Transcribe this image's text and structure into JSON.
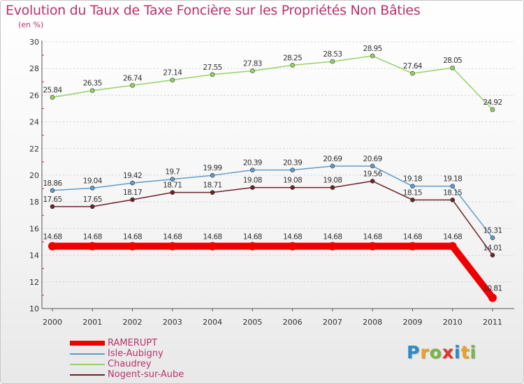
{
  "chart_data": {
    "type": "line",
    "title": "Evolution du Taux de Taxe Foncière sur les Propriétés Non Bâties",
    "subtitle": "(en %)",
    "x": [
      "2000",
      "2001",
      "2002",
      "2003",
      "2004",
      "2005",
      "2006",
      "2007",
      "2008",
      "2009",
      "2010",
      "2011"
    ],
    "ylim": [
      10,
      30
    ],
    "yticks": [
      "10",
      "12",
      "14",
      "16",
      "18",
      "20",
      "22",
      "24",
      "26",
      "28",
      "30"
    ],
    "series": [
      {
        "name": "RAMERUPT",
        "color": "#ee0000",
        "values": [
          14.68,
          14.68,
          14.68,
          14.68,
          14.68,
          14.68,
          14.68,
          14.68,
          14.68,
          14.68,
          14.68,
          10.81
        ],
        "labels": [
          "14.68",
          "14.68",
          "14.68",
          "14.68",
          "14.68",
          "14.68",
          "14.68",
          "14.68",
          "14.68",
          "14.68",
          "14.68",
          "10.81"
        ]
      },
      {
        "name": "Isle-Aubigny",
        "color": "#5f9bcb",
        "values": [
          18.86,
          19.04,
          19.42,
          19.7,
          19.99,
          20.39,
          20.39,
          20.69,
          20.69,
          19.18,
          19.18,
          15.31
        ],
        "labels": [
          "18.86",
          "19.04",
          "19.42",
          "19.7",
          "19.99",
          "20.39",
          "20.39",
          "20.69",
          "20.69",
          "19.18",
          "19.18",
          "15.31"
        ]
      },
      {
        "name": "Chaudrey",
        "color": "#96d264",
        "values": [
          25.84,
          26.35,
          26.74,
          27.14,
          27.55,
          27.83,
          28.25,
          28.53,
          28.95,
          27.64,
          28.05,
          24.92
        ],
        "labels": [
          "25.84",
          "26.35",
          "26.74",
          "27.14",
          "27.55",
          "27.83",
          "28.25",
          "28.53",
          "28.95",
          "27.64",
          "28.05",
          "24.92"
        ]
      },
      {
        "name": "Nogent-sur-Aube",
        "color": "#6b2327",
        "values": [
          17.65,
          17.65,
          18.17,
          18.71,
          18.71,
          19.08,
          19.08,
          19.08,
          19.56,
          18.15,
          18.15,
          14.01
        ],
        "labels": [
          "17.65",
          "17.65",
          "18.17",
          "18.71",
          "18.71",
          "19.08",
          "19.08",
          "19.08",
          "19.56",
          "18.15",
          "18.15",
          "14.01"
        ]
      }
    ],
    "legend": [
      "RAMERUPT",
      "Isle-Aubigny",
      "Chaudrey",
      "Nogent-sur-Aube"
    ]
  },
  "logo": {
    "letters": [
      "P",
      "r",
      "o",
      "x",
      "i",
      "t",
      "i"
    ],
    "colors": [
      "#2a8ccc",
      "#f0a020",
      "#7ab648",
      "#e0342c",
      "#2a8ccc",
      "#f0a020",
      "#7ab648"
    ]
  }
}
